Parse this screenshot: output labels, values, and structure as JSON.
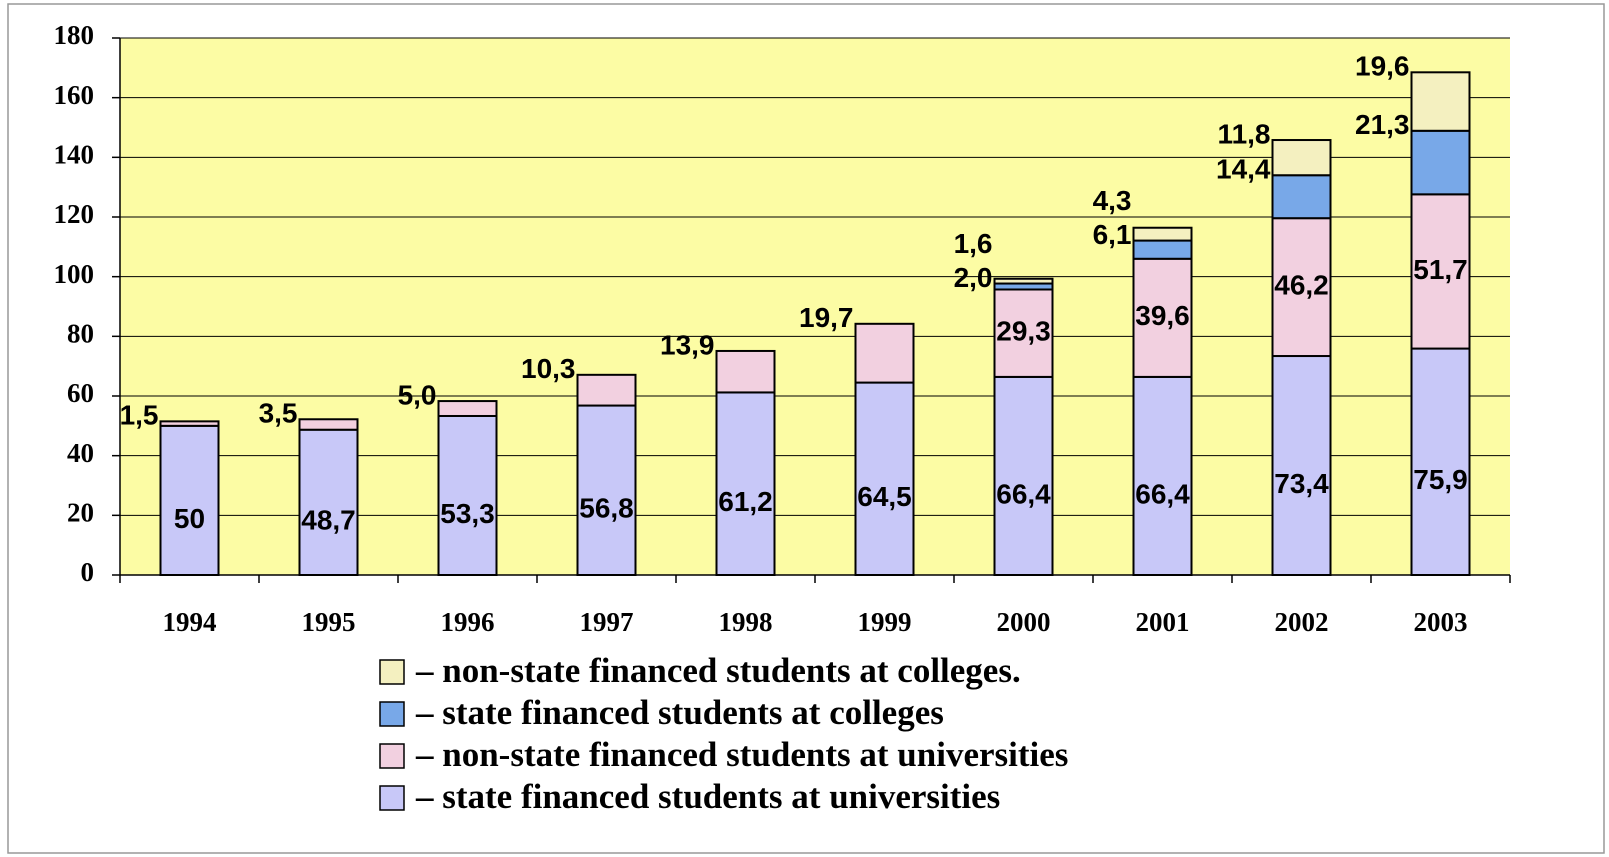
{
  "chart_data": {
    "type": "stacked_bar",
    "categories": [
      "1994",
      "1995",
      "1996",
      "1997",
      "1998",
      "1999",
      "2000",
      "2001",
      "2002",
      "2003"
    ],
    "series": [
      {
        "name": "– state financed students at universities",
        "color": "#c8c8f8",
        "values": [
          50,
          48.7,
          53.3,
          56.8,
          61.2,
          64.5,
          66.4,
          66.4,
          73.4,
          75.9
        ],
        "value_labels": [
          "50",
          "48,7",
          "53,3",
          "56,8",
          "61,2",
          "64,5",
          "66,4",
          "66,4",
          "73,4",
          "75,9"
        ]
      },
      {
        "name": "– non-state financed students at universities",
        "color": "#f2d0e0",
        "values": [
          1.5,
          3.5,
          5.0,
          10.3,
          13.9,
          19.7,
          29.3,
          39.6,
          46.2,
          51.7
        ],
        "value_labels": [
          "1,5",
          "3,5",
          "5,0",
          "10,3",
          "13,9",
          "19,7",
          "29,3",
          "39,6",
          "46,2",
          "51,7"
        ]
      },
      {
        "name": "– state financed students at colleges",
        "color": "#78a8e8",
        "values": [
          null,
          null,
          null,
          null,
          null,
          null,
          2.0,
          6.1,
          14.4,
          21.3
        ],
        "value_labels": [
          null,
          null,
          null,
          null,
          null,
          null,
          "2,0",
          "6,1",
          "14,4",
          "21,3"
        ]
      },
      {
        "name": "– non-state financed students at colleges.",
        "color": "#f4f0c0",
        "values": [
          null,
          null,
          null,
          null,
          null,
          null,
          1.6,
          4.3,
          11.8,
          19.6
        ],
        "value_labels": [
          null,
          null,
          null,
          null,
          null,
          null,
          "1,6",
          "4,3",
          "11,8",
          "19,6"
        ]
      }
    ],
    "ylim": [
      0,
      180
    ],
    "yticks": [
      0,
      20,
      40,
      60,
      80,
      100,
      120,
      140,
      160,
      180
    ],
    "grid": true,
    "plot_background": "#fcfca4"
  }
}
